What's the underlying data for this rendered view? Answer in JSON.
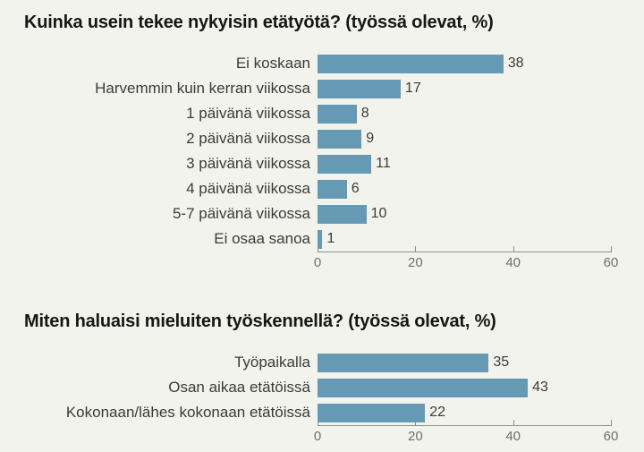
{
  "style": {
    "background_color": "#f3f3ee",
    "bar_color": "#6699b3",
    "title_color": "#161616",
    "category_label_color": "#3a3a3a",
    "value_label_color": "#3a3a3a",
    "axis_line_color": "#8f8f8f",
    "axis_label_color": "#6e6e6e"
  },
  "chart_data": [
    {
      "type": "bar",
      "orientation": "horizontal",
      "title": "Kuinka usein tekee nykyisin etätyötä? (työssä olevat, %)",
      "categories": [
        "Ei koskaan",
        "Harvemmin kuin kerran viikossa",
        "1 päivänä viikossa",
        "2 päivänä viikossa",
        "3 päivänä viikossa",
        "4 päivänä viikossa",
        "5-7 päivänä viikossa",
        "Ei osaa sanoa"
      ],
      "values": [
        38,
        17,
        8,
        9,
        11,
        6,
        10,
        1
      ],
      "xlim": [
        0,
        60
      ],
      "axis_ticks": [
        0,
        20,
        40,
        60
      ],
      "grid": false,
      "legend": false,
      "value_labels_shown": true
    },
    {
      "type": "bar",
      "orientation": "horizontal",
      "title": "Miten haluaisi mieluiten työskennellä? (työssä olevat, %)",
      "categories": [
        "Työpaikalla",
        "Osan aikaa etätöissä",
        "Kokonaan/lähes kokonaan etätöissä"
      ],
      "values": [
        35,
        43,
        22
      ],
      "xlim": [
        0,
        60
      ],
      "axis_ticks": [
        0,
        20,
        40,
        60
      ],
      "grid": false,
      "legend": false,
      "value_labels_shown": true
    }
  ]
}
